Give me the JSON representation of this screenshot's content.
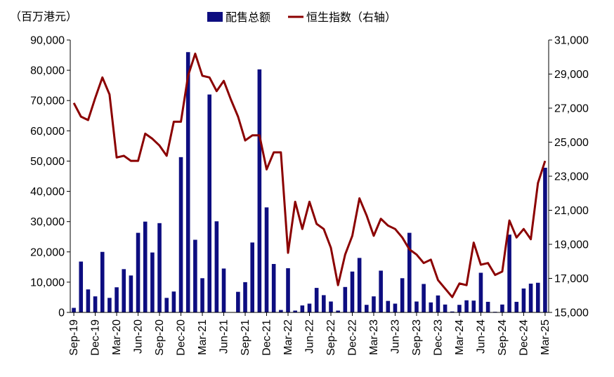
{
  "chart_data": {
    "type": "bar+line",
    "unit_label": "（百万港元）",
    "legend": {
      "placement": "top-center",
      "bar_label": "配售总额",
      "line_label": "恒生指数（右轴）"
    },
    "colors": {
      "bar": "#0d0d80",
      "line": "#8b0000",
      "axis": "#000000"
    },
    "x_tick_labels": [
      "Sep-19",
      "Dec-19",
      "Mar-20",
      "Jun-20",
      "Sep-20",
      "Dec-20",
      "Mar-21",
      "Jun-21",
      "Sep-21",
      "Dec-21",
      "Mar-22",
      "Jun-22",
      "Sep-22",
      "Dec-22",
      "Mar-23",
      "Jun-23",
      "Sep-23",
      "Dec-23",
      "Mar-24",
      "Jun-24",
      "Sep-24",
      "Dec-24",
      "Mar-25"
    ],
    "months": [
      "Sep-19",
      "Oct-19",
      "Nov-19",
      "Dec-19",
      "Jan-20",
      "Feb-20",
      "Mar-20",
      "Apr-20",
      "May-20",
      "Jun-20",
      "Jul-20",
      "Aug-20",
      "Sep-20",
      "Oct-20",
      "Nov-20",
      "Dec-20",
      "Jan-21",
      "Feb-21",
      "Mar-21",
      "Apr-21",
      "May-21",
      "Jun-21",
      "Jul-21",
      "Aug-21",
      "Sep-21",
      "Oct-21",
      "Nov-21",
      "Dec-21",
      "Jan-22",
      "Feb-22",
      "Mar-22",
      "Apr-22",
      "May-22",
      "Jun-22",
      "Jul-22",
      "Aug-22",
      "Sep-22",
      "Oct-22",
      "Nov-22",
      "Dec-22",
      "Jan-23",
      "Feb-23",
      "Mar-23",
      "Apr-23",
      "May-23",
      "Jun-23",
      "Jul-23",
      "Aug-23",
      "Sep-23",
      "Oct-23",
      "Nov-23",
      "Dec-23",
      "Jan-24",
      "Feb-24",
      "Mar-24",
      "Apr-24",
      "May-24",
      "Jun-24",
      "Jul-24",
      "Aug-24",
      "Sep-24",
      "Oct-24",
      "Nov-24",
      "Dec-24",
      "Jan-25",
      "Feb-25",
      "Mar-25"
    ],
    "left_axis": {
      "min": 0,
      "max": 90000,
      "ticks": [
        0,
        10000,
        20000,
        30000,
        40000,
        50000,
        60000,
        70000,
        80000,
        90000
      ],
      "tick_labels": [
        "0",
        "10,000",
        "20,000",
        "30,000",
        "40,000",
        "50,000",
        "60,000",
        "70,000",
        "80,000",
        "90,000"
      ]
    },
    "right_axis": {
      "min": 15000,
      "max": 31000,
      "ticks": [
        15000,
        17000,
        19000,
        21000,
        23000,
        25000,
        27000,
        29000,
        31000
      ],
      "tick_labels": [
        "15,000",
        "17,000",
        "19,000",
        "21,000",
        "23,000",
        "25,000",
        "27,000",
        "29,000",
        "31,000"
      ]
    },
    "series": [
      {
        "name": "配售总额",
        "type": "bar",
        "axis": "left",
        "values": [
          1500,
          16800,
          7600,
          5300,
          20000,
          4800,
          8300,
          14300,
          12200,
          26300,
          30000,
          19800,
          29500,
          4800,
          6900,
          51300,
          86000,
          24000,
          11300,
          72000,
          30100,
          14500,
          null,
          6800,
          10000,
          23100,
          80300,
          34700,
          16000,
          800,
          14600,
          600,
          2300,
          2900,
          8100,
          5700,
          3600,
          600,
          8400,
          13500,
          18000,
          2500,
          5300,
          13800,
          3800,
          2900,
          11300,
          26300,
          3600,
          9400,
          3300,
          5600,
          2600,
          300,
          2500,
          4000,
          3900,
          13100,
          3500,
          200,
          2600,
          25700,
          3500,
          7900,
          9500,
          9800,
          47800
        ]
      },
      {
        "name": "恒生指数（右轴）",
        "type": "line",
        "axis": "right",
        "values": [
          27300,
          26500,
          26300,
          27600,
          28800,
          27800,
          24100,
          24200,
          23900,
          23900,
          25500,
          25200,
          24800,
          24200,
          26200,
          26200,
          28900,
          30200,
          28900,
          28800,
          28000,
          28600,
          27500,
          26500,
          25100,
          25400,
          25400,
          23400,
          24400,
          24400,
          18500,
          21500,
          19900,
          21500,
          20200,
          19900,
          18800,
          16600,
          18400,
          19500,
          21700,
          20700,
          19500,
          20500,
          20100,
          19900,
          19400,
          18700,
          18400,
          17900,
          18100,
          16900,
          16400,
          15900,
          16700,
          16600,
          19100,
          17800,
          17900,
          17200,
          17400,
          20400,
          19400,
          19900,
          19300,
          22600,
          23900
        ]
      }
    ]
  }
}
